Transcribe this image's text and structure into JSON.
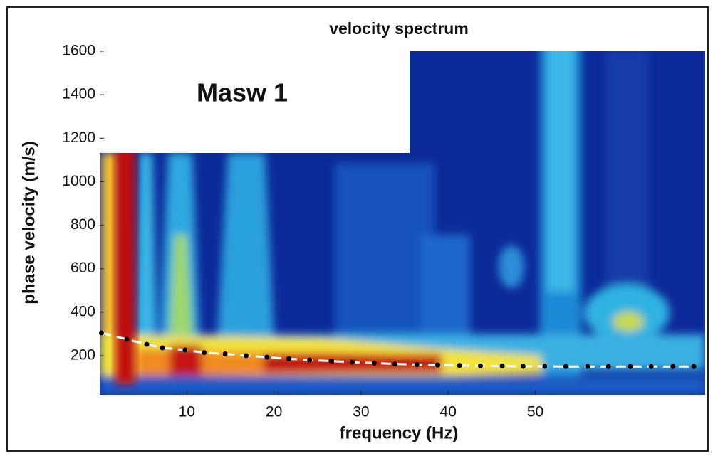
{
  "chart_data": {
    "type": "line",
    "title": "velocity spectrum",
    "x_label": "frequency (Hz)",
    "y_label": "phase velocity (m/s)",
    "annotation": "Masw 1",
    "x": [
      0.2,
      3.1,
      5.4,
      7.2,
      9.8,
      12.0,
      14.4,
      16.8,
      19.2,
      21.7,
      24.1,
      26.6,
      29.0,
      31.5,
      33.9,
      36.4,
      38.8,
      41.3,
      43.7,
      46.2,
      48.6,
      51.1,
      53.5,
      56.0,
      58.4,
      60.9,
      63.3,
      65.8,
      68.2
    ],
    "values": [
      305,
      275,
      252,
      236,
      226,
      214,
      208,
      200,
      193,
      186,
      180,
      175,
      170,
      166,
      162,
      159,
      157,
      155,
      153,
      152,
      151,
      151,
      150,
      150,
      150,
      150,
      150,
      150,
      150
    ],
    "color": "#000000",
    "line_color": "#ffffff",
    "xlim": [
      0,
      69.5
    ],
    "xticks": [
      10,
      20,
      30,
      40,
      50
    ],
    "ylim": [
      20,
      1600
    ],
    "yticks": [
      200,
      400,
      600,
      800,
      1000,
      1200,
      1400,
      1600
    ],
    "grid": false
  }
}
